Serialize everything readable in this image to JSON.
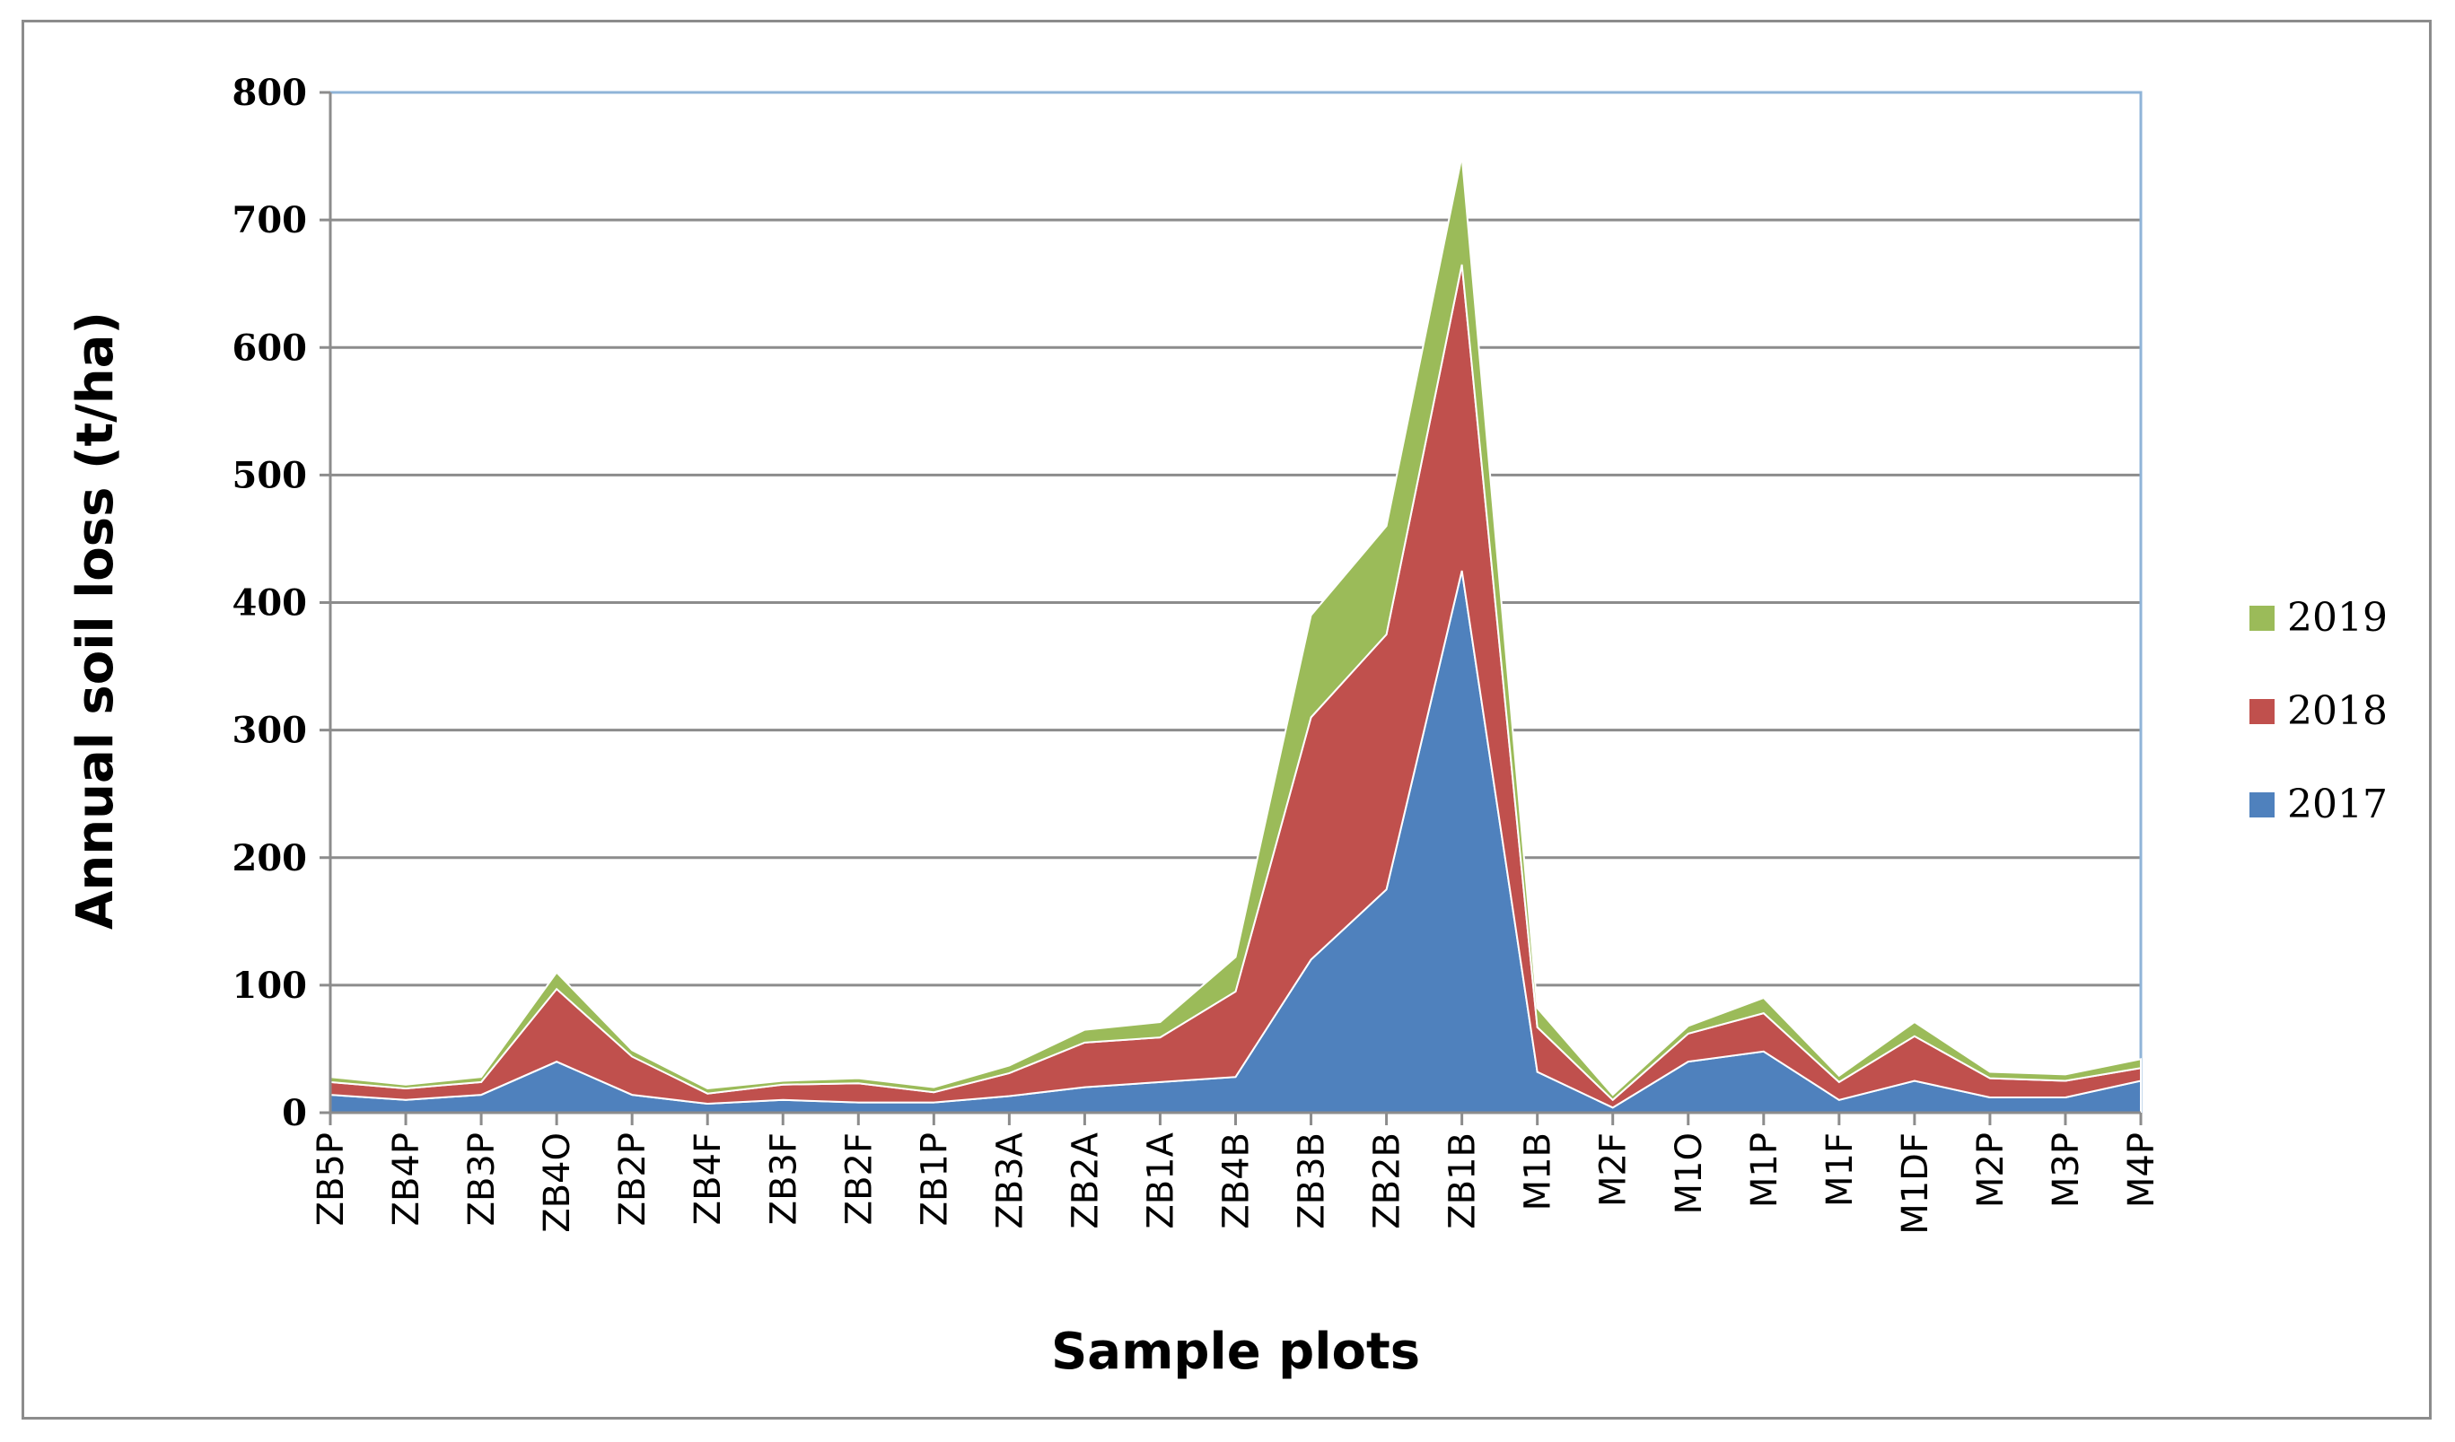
{
  "chart_data": {
    "type": "area",
    "stacked": true,
    "title": "",
    "xlabel": "Sample plots",
    "ylabel": "Annual soil loss (t/ha)",
    "ylim": [
      0,
      800
    ],
    "yticks": [
      0,
      100,
      200,
      300,
      400,
      500,
      600,
      700,
      800
    ],
    "grid": true,
    "legend_position": "right",
    "categories": [
      "ZB5P",
      "ZB4P",
      "ZB3P",
      "ZB4O",
      "ZB2P",
      "ZB4F",
      "ZB3F",
      "ZB2F",
      "ZB1P",
      "ZB3A",
      "ZB2A",
      "ZB1A",
      "ZB4B",
      "ZB3B",
      "ZB2B",
      "ZB1B",
      "M1B",
      "M2F",
      "M1O",
      "M1P",
      "M1F",
      "M1DF",
      "M2P",
      "M3P",
      "M4P"
    ],
    "series": [
      {
        "name": "2017",
        "color": "#4f81bd",
        "values": [
          14,
          10,
          14,
          40,
          14,
          7,
          10,
          8,
          8,
          13,
          20,
          24,
          28,
          120,
          175,
          425,
          32,
          4,
          40,
          48,
          10,
          25,
          12,
          12,
          25
        ]
      },
      {
        "name": "2018",
        "color": "#c0504d",
        "values": [
          10,
          9,
          10,
          57,
          30,
          8,
          12,
          15,
          8,
          18,
          35,
          35,
          67,
          190,
          200,
          240,
          35,
          6,
          22,
          30,
          14,
          35,
          15,
          13,
          10
        ]
      },
      {
        "name": "2019",
        "color": "#9bbb59",
        "values": [
          4,
          3,
          4,
          13,
          5,
          4,
          3,
          4,
          4,
          6,
          10,
          12,
          27,
          80,
          85,
          85,
          15,
          4,
          6,
          12,
          5,
          11,
          5,
          5,
          7
        ]
      }
    ]
  }
}
